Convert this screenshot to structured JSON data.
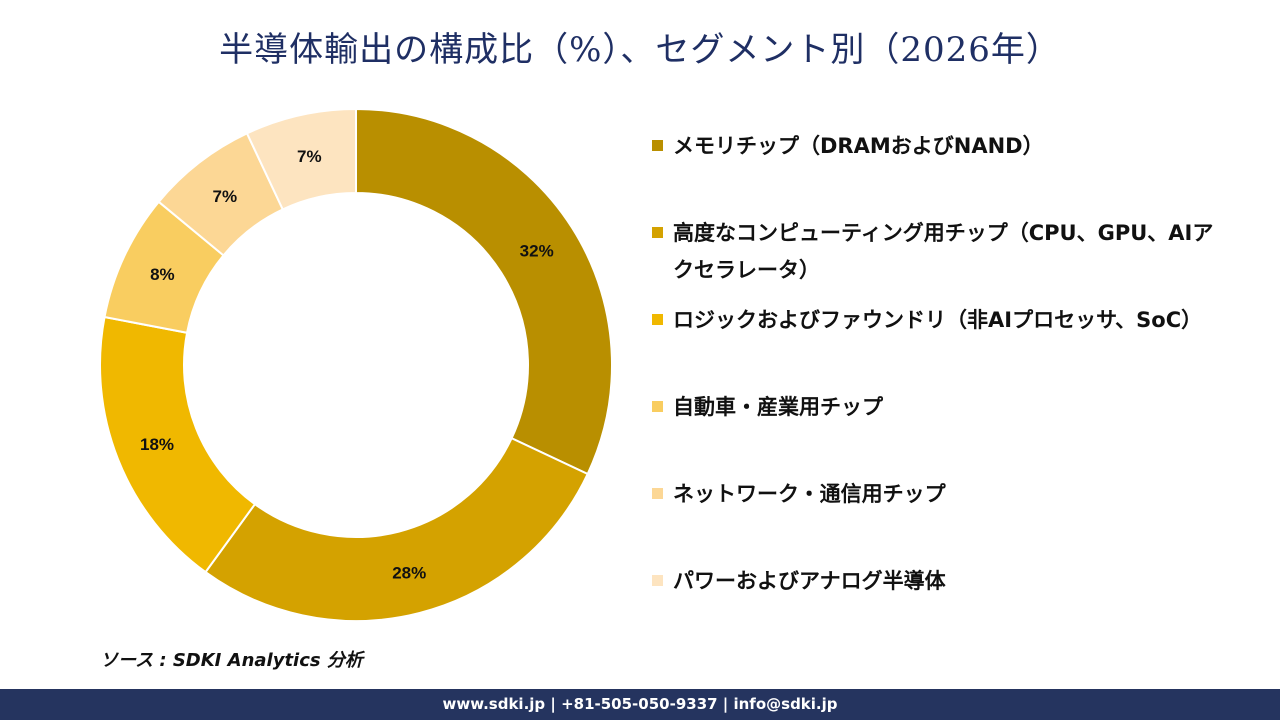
{
  "title": "半導体輸出の構成比（%）、セグメント別（2026年）",
  "chart_data": {
    "type": "pie",
    "variant": "donut",
    "title": "半導体輸出の構成比（%）、セグメント別（2026年）",
    "unit": "%",
    "segments": [
      {
        "name": "メモリチップ（DRAMおよびNAND）",
        "value": 32,
        "label": "32%",
        "color": "#b98f00"
      },
      {
        "name": "高度なコンピューティング用チップ（CPU、GPU、AIアクセラレータ）",
        "value": 28,
        "label": "28%",
        "color": "#d4a200"
      },
      {
        "name": "ロジックおよびファウンドリ（非AIプロセッサ、SoC）",
        "value": 18,
        "label": "18%",
        "color": "#f0b800"
      },
      {
        "name": "自動車・産業用チップ",
        "value": 8,
        "label": "8%",
        "color": "#f9cd60"
      },
      {
        "name": "ネットワーク・通信用チップ",
        "value": 7,
        "label": "7%",
        "color": "#fcd795"
      },
      {
        "name": "パワーおよびアナログ半導体",
        "value": 7,
        "label": "7%",
        "color": "#fde4c0"
      }
    ],
    "legend_position": "right"
  },
  "source": "ソース : SDKI Analytics 分析",
  "footer": "www.sdki.jp | +81-505-050-9337 | info@sdki.jp"
}
